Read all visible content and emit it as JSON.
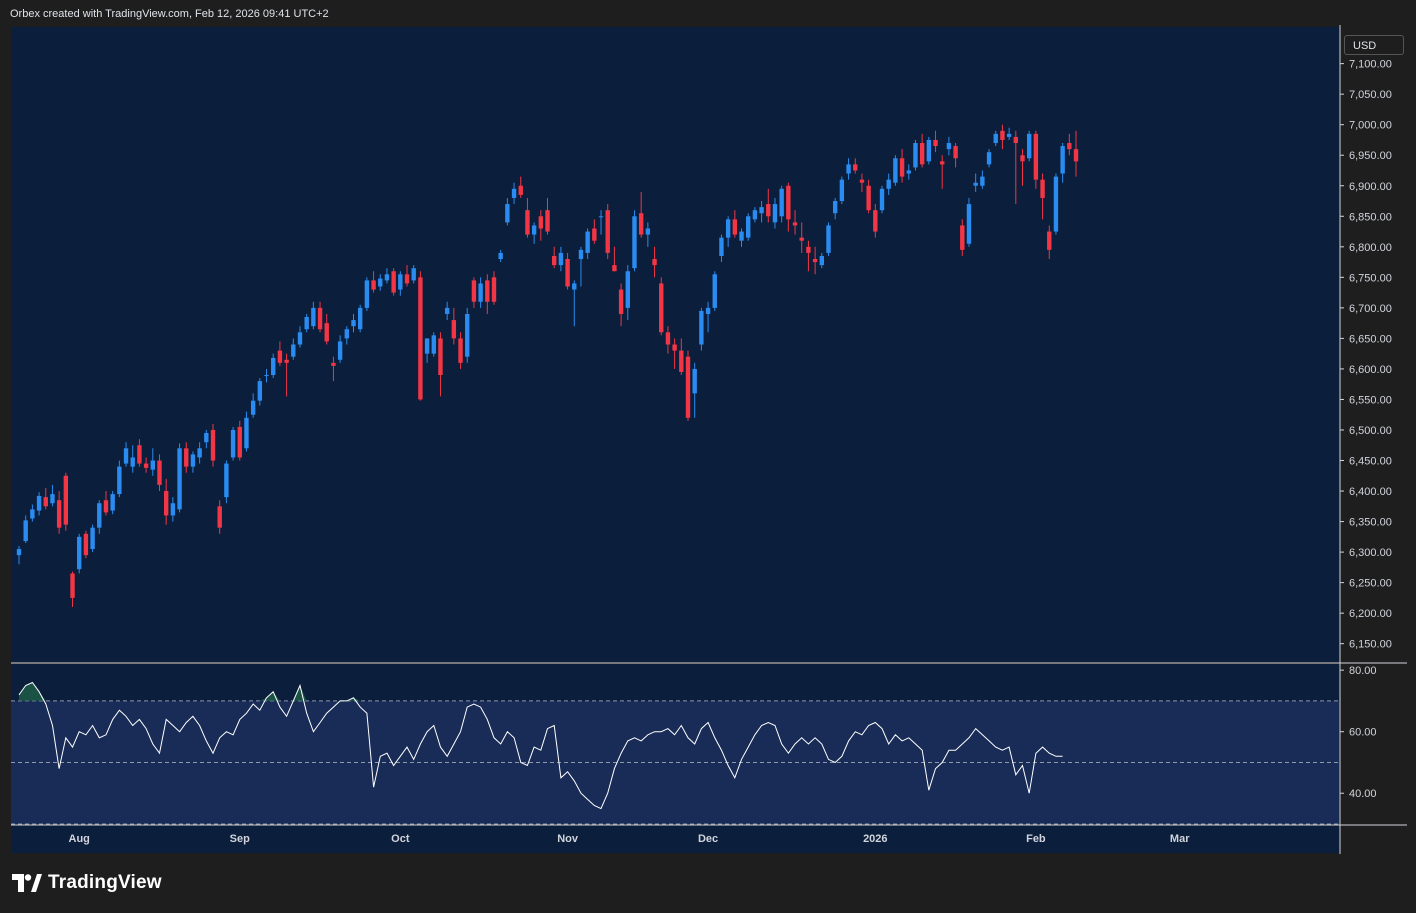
{
  "header": {
    "text": "Orbex created with TradingView.com, Feb 12, 2026 09:41 UTC+2"
  },
  "price_scale": {
    "currency": "USD"
  },
  "branding": {
    "logo_text": "TradingView"
  },
  "colors": {
    "up": "#2a8cf0",
    "down": "#f23645",
    "pane_bg": "#0b1e3b",
    "rsi_band": "#182c57",
    "rsi_line": "#ffffff"
  },
  "chart_data": [
    {
      "type": "candlestick",
      "ylim": [
        6120,
        7160
      ],
      "yticks": [
        "7,100.00",
        "7,050.00",
        "7,000.00",
        "6,950.00",
        "6,900.00",
        "6,850.00",
        "6,800.00",
        "6,750.00",
        "6,700.00",
        "6,650.00",
        "6,600.00",
        "6,550.00",
        "6,500.00",
        "6,450.00",
        "6,400.00",
        "6,350.00",
        "6,300.00",
        "6,250.00",
        "6,200.00",
        "6,150.00"
      ],
      "x_labels": [
        "Aug",
        "Sep",
        "Oct",
        "Nov",
        "Dec",
        "2026",
        "Feb",
        "Mar"
      ],
      "candles": [
        {
          "o": 6295,
          "h": 6310,
          "c": 6305,
          "l": 6280
        },
        {
          "o": 6318,
          "h": 6360,
          "c": 6352,
          "l": 6315
        },
        {
          "o": 6355,
          "h": 6378,
          "c": 6370,
          "l": 6350
        },
        {
          "o": 6368,
          "h": 6398,
          "c": 6392,
          "l": 6360
        },
        {
          "o": 6390,
          "h": 6405,
          "c": 6375,
          "l": 6370
        },
        {
          "o": 6380,
          "h": 6410,
          "c": 6395,
          "l": 6375
        },
        {
          "o": 6385,
          "h": 6400,
          "c": 6340,
          "l": 6330
        },
        {
          "o": 6425,
          "h": 6430,
          "c": 6345,
          "l": 6335
        },
        {
          "o": 6265,
          "h": 6268,
          "c": 6225,
          "l": 6210
        },
        {
          "o": 6272,
          "h": 6330,
          "c": 6325,
          "l": 6265
        },
        {
          "o": 6330,
          "h": 6335,
          "c": 6295,
          "l": 6290
        },
        {
          "o": 6305,
          "h": 6345,
          "c": 6340,
          "l": 6300
        },
        {
          "o": 6340,
          "h": 6385,
          "c": 6380,
          "l": 6330
        },
        {
          "o": 6385,
          "h": 6400,
          "c": 6365,
          "l": 6360
        },
        {
          "o": 6368,
          "h": 6400,
          "c": 6395,
          "l": 6362
        },
        {
          "o": 6395,
          "h": 6450,
          "c": 6440,
          "l": 6390
        },
        {
          "o": 6445,
          "h": 6480,
          "c": 6470,
          "l": 6440
        },
        {
          "o": 6440,
          "h": 6475,
          "c": 6455,
          "l": 6430
        },
        {
          "o": 6475,
          "h": 6485,
          "c": 6445,
          "l": 6440
        },
        {
          "o": 6445,
          "h": 6455,
          "c": 6438,
          "l": 6430
        },
        {
          "o": 6435,
          "h": 6470,
          "c": 6450,
          "l": 6425
        },
        {
          "o": 6450,
          "h": 6460,
          "c": 6410,
          "l": 6400
        },
        {
          "o": 6400,
          "h": 6420,
          "c": 6360,
          "l": 6345
        },
        {
          "o": 6360,
          "h": 6390,
          "c": 6380,
          "l": 6350
        },
        {
          "o": 6370,
          "h": 6478,
          "c": 6470,
          "l": 6365
        },
        {
          "o": 6470,
          "h": 6480,
          "c": 6440,
          "l": 6430
        },
        {
          "o": 6440,
          "h": 6465,
          "c": 6460,
          "l": 6430
        },
        {
          "o": 6455,
          "h": 6480,
          "c": 6470,
          "l": 6445
        },
        {
          "o": 6480,
          "h": 6500,
          "c": 6495,
          "l": 6470
        },
        {
          "o": 6500,
          "h": 6510,
          "c": 6450,
          "l": 6440
        },
        {
          "o": 6375,
          "h": 6385,
          "c": 6340,
          "l": 6330
        },
        {
          "o": 6390,
          "h": 6450,
          "c": 6445,
          "l": 6380
        },
        {
          "o": 6455,
          "h": 6505,
          "c": 6500,
          "l": 6450
        },
        {
          "o": 6505,
          "h": 6515,
          "c": 6455,
          "l": 6450
        },
        {
          "o": 6470,
          "h": 6530,
          "c": 6520,
          "l": 6465
        },
        {
          "o": 6525,
          "h": 6560,
          "c": 6548,
          "l": 6520
        },
        {
          "o": 6548,
          "h": 6585,
          "c": 6580,
          "l": 6540
        },
        {
          "o": 6590,
          "h": 6600,
          "c": 6590,
          "l": 6578
        },
        {
          "o": 6590,
          "h": 6625,
          "c": 6618,
          "l": 6585
        },
        {
          "o": 6630,
          "h": 6645,
          "c": 6610,
          "l": 6605
        },
        {
          "o": 6615,
          "h": 6625,
          "c": 6610,
          "l": 6555
        },
        {
          "o": 6620,
          "h": 6650,
          "c": 6640,
          "l": 6615
        },
        {
          "o": 6640,
          "h": 6670,
          "c": 6660,
          "l": 6635
        },
        {
          "o": 6665,
          "h": 6690,
          "c": 6685,
          "l": 6660
        },
        {
          "o": 6670,
          "h": 6710,
          "c": 6700,
          "l": 6665
        },
        {
          "o": 6700,
          "h": 6710,
          "c": 6665,
          "l": 6660
        },
        {
          "o": 6675,
          "h": 6690,
          "c": 6645,
          "l": 6640
        },
        {
          "o": 6610,
          "h": 6620,
          "c": 6605,
          "l": 6580
        },
        {
          "o": 6615,
          "h": 6655,
          "c": 6645,
          "l": 6610
        },
        {
          "o": 6650,
          "h": 6670,
          "c": 6665,
          "l": 6640
        },
        {
          "o": 6670,
          "h": 6690,
          "c": 6680,
          "l": 6660
        },
        {
          "o": 6665,
          "h": 6705,
          "c": 6700,
          "l": 6660
        },
        {
          "o": 6700,
          "h": 6750,
          "c": 6745,
          "l": 6695
        },
        {
          "o": 6745,
          "h": 6760,
          "c": 6730,
          "l": 6725
        },
        {
          "o": 6735,
          "h": 6755,
          "c": 6748,
          "l": 6728
        },
        {
          "o": 6745,
          "h": 6765,
          "c": 6755,
          "l": 6740
        },
        {
          "o": 6760,
          "h": 6765,
          "c": 6725,
          "l": 6720
        },
        {
          "o": 6730,
          "h": 6760,
          "c": 6755,
          "l": 6720
        },
        {
          "o": 6755,
          "h": 6770,
          "c": 6740,
          "l": 6735
        },
        {
          "o": 6745,
          "h": 6770,
          "c": 6765,
          "l": 6740
        },
        {
          "o": 6750,
          "h": 6760,
          "c": 6550,
          "l": 6548
        },
        {
          "o": 6625,
          "h": 6650,
          "c": 6650,
          "l": 6610
        },
        {
          "o": 6625,
          "h": 6660,
          "c": 6655,
          "l": 6620
        },
        {
          "o": 6650,
          "h": 6660,
          "c": 6590,
          "l": 6555
        },
        {
          "o": 6690,
          "h": 6710,
          "c": 6700,
          "l": 6680
        },
        {
          "o": 6680,
          "h": 6700,
          "c": 6650,
          "l": 6640
        },
        {
          "o": 6650,
          "h": 6660,
          "c": 6610,
          "l": 6600
        },
        {
          "o": 6620,
          "h": 6700,
          "c": 6690,
          "l": 6610
        },
        {
          "o": 6745,
          "h": 6750,
          "c": 6710,
          "l": 6700
        },
        {
          "o": 6710,
          "h": 6750,
          "c": 6740,
          "l": 6700
        },
        {
          "o": 6745,
          "h": 6755,
          "c": 6710,
          "l": 6690
        },
        {
          "o": 6750,
          "h": 6760,
          "c": 6710,
          "l": 6705
        },
        {
          "o": 6780,
          "h": 6795,
          "c": 6790,
          "l": 6775
        },
        {
          "o": 6840,
          "h": 6880,
          "c": 6870,
          "l": 6835
        },
        {
          "o": 6880,
          "h": 6905,
          "c": 6895,
          "l": 6870
        },
        {
          "o": 6900,
          "h": 6915,
          "c": 6885,
          "l": 6880
        },
        {
          "o": 6860,
          "h": 6880,
          "c": 6820,
          "l": 6815
        },
        {
          "o": 6820,
          "h": 6840,
          "c": 6835,
          "l": 6805
        },
        {
          "o": 6850,
          "h": 6860,
          "c": 6830,
          "l": 6810
        },
        {
          "o": 6860,
          "h": 6880,
          "c": 6825,
          "l": 6820
        },
        {
          "o": 6785,
          "h": 6800,
          "c": 6770,
          "l": 6765
        },
        {
          "o": 6770,
          "h": 6800,
          "c": 6790,
          "l": 6760
        },
        {
          "o": 6780,
          "h": 6790,
          "c": 6735,
          "l": 6730
        },
        {
          "o": 6730,
          "h": 6745,
          "c": 6740,
          "l": 6670
        },
        {
          "o": 6780,
          "h": 6800,
          "c": 6795,
          "l": 6735
        },
        {
          "o": 6790,
          "h": 6830,
          "c": 6825,
          "l": 6780
        },
        {
          "o": 6830,
          "h": 6845,
          "c": 6810,
          "l": 6805
        },
        {
          "o": 6850,
          "h": 6860,
          "c": 6850,
          "l": 6820
        },
        {
          "o": 6860,
          "h": 6870,
          "c": 6790,
          "l": 6780
        },
        {
          "o": 6770,
          "h": 6800,
          "c": 6760,
          "l": 6760
        },
        {
          "o": 6730,
          "h": 6740,
          "c": 6690,
          "l": 6670
        },
        {
          "o": 6700,
          "h": 6770,
          "c": 6760,
          "l": 6680
        },
        {
          "o": 6765,
          "h": 6860,
          "c": 6850,
          "l": 6760
        },
        {
          "o": 6855,
          "h": 6890,
          "c": 6820,
          "l": 6815
        },
        {
          "o": 6820,
          "h": 6840,
          "c": 6830,
          "l": 6800
        },
        {
          "o": 6780,
          "h": 6800,
          "c": 6770,
          "l": 6750
        },
        {
          "o": 6740,
          "h": 6750,
          "c": 6660,
          "l": 6655
        },
        {
          "o": 6660,
          "h": 6670,
          "c": 6640,
          "l": 6625
        },
        {
          "o": 6640,
          "h": 6650,
          "c": 6630,
          "l": 6600
        },
        {
          "o": 6630,
          "h": 6650,
          "c": 6595,
          "l": 6590
        },
        {
          "o": 6620,
          "h": 6630,
          "c": 6520,
          "l": 6515
        },
        {
          "o": 6560,
          "h": 6610,
          "c": 6600,
          "l": 6520
        },
        {
          "o": 6640,
          "h": 6700,
          "c": 6695,
          "l": 6630
        },
        {
          "o": 6690,
          "h": 6710,
          "c": 6700,
          "l": 6660
        },
        {
          "o": 6700,
          "h": 6760,
          "c": 6755,
          "l": 6695
        },
        {
          "o": 6785,
          "h": 6820,
          "c": 6815,
          "l": 6775
        },
        {
          "o": 6815,
          "h": 6850,
          "c": 6845,
          "l": 6800
        },
        {
          "o": 6845,
          "h": 6860,
          "c": 6820,
          "l": 6815
        },
        {
          "o": 6810,
          "h": 6830,
          "c": 6825,
          "l": 6800
        },
        {
          "o": 6815,
          "h": 6855,
          "c": 6850,
          "l": 6810
        },
        {
          "o": 6845,
          "h": 6865,
          "c": 6860,
          "l": 6840
        },
        {
          "o": 6855,
          "h": 6875,
          "c": 6865,
          "l": 6840
        },
        {
          "o": 6870,
          "h": 6895,
          "c": 6850,
          "l": 6840
        },
        {
          "o": 6840,
          "h": 6880,
          "c": 6870,
          "l": 6830
        },
        {
          "o": 6850,
          "h": 6900,
          "c": 6895,
          "l": 6840
        },
        {
          "o": 6900,
          "h": 6905,
          "c": 6845,
          "l": 6825
        },
        {
          "o": 6840,
          "h": 6860,
          "c": 6835,
          "l": 6820
        },
        {
          "o": 6815,
          "h": 6840,
          "c": 6810,
          "l": 6790
        },
        {
          "o": 6800,
          "h": 6810,
          "c": 6790,
          "l": 6760
        },
        {
          "o": 6780,
          "h": 6800,
          "c": 6775,
          "l": 6755
        },
        {
          "o": 6770,
          "h": 6790,
          "c": 6785,
          "l": 6765
        },
        {
          "o": 6790,
          "h": 6840,
          "c": 6835,
          "l": 6785
        },
        {
          "o": 6855,
          "h": 6880,
          "c": 6875,
          "l": 6845
        },
        {
          "o": 6875,
          "h": 6915,
          "c": 6910,
          "l": 6870
        },
        {
          "o": 6920,
          "h": 6945,
          "c": 6935,
          "l": 6910
        },
        {
          "o": 6935,
          "h": 6945,
          "c": 6925,
          "l": 6920
        },
        {
          "o": 6910,
          "h": 6920,
          "c": 6905,
          "l": 6890
        },
        {
          "o": 6900,
          "h": 6910,
          "c": 6860,
          "l": 6855
        },
        {
          "o": 6860,
          "h": 6870,
          "c": 6825,
          "l": 6815
        },
        {
          "o": 6860,
          "h": 6900,
          "c": 6895,
          "l": 6855
        },
        {
          "o": 6895,
          "h": 6920,
          "c": 6910,
          "l": 6885
        },
        {
          "o": 6905,
          "h": 6950,
          "c": 6945,
          "l": 6900
        },
        {
          "o": 6945,
          "h": 6960,
          "c": 6915,
          "l": 6905
        },
        {
          "o": 6920,
          "h": 6935,
          "c": 6925,
          "l": 6910
        },
        {
          "o": 6930,
          "h": 6975,
          "c": 6970,
          "l": 6925
        },
        {
          "o": 6970,
          "h": 6985,
          "c": 6935,
          "l": 6930
        },
        {
          "o": 6940,
          "h": 6980,
          "c": 6975,
          "l": 6935
        },
        {
          "o": 6975,
          "h": 6990,
          "c": 6965,
          "l": 6955
        },
        {
          "o": 6940,
          "h": 6950,
          "c": 6935,
          "l": 6895
        },
        {
          "o": 6960,
          "h": 6980,
          "c": 6970,
          "l": 6950
        },
        {
          "o": 6965,
          "h": 6970,
          "c": 6945,
          "l": 6930
        },
        {
          "o": 6835,
          "h": 6845,
          "c": 6795,
          "l": 6785
        },
        {
          "o": 6805,
          "h": 6880,
          "c": 6870,
          "l": 6800
        },
        {
          "o": 6900,
          "h": 6920,
          "c": 6905,
          "l": 6890
        },
        {
          "o": 6900,
          "h": 6925,
          "c": 6915,
          "l": 6895
        },
        {
          "o": 6935,
          "h": 6960,
          "c": 6955,
          "l": 6930
        },
        {
          "o": 6970,
          "h": 6990,
          "c": 6985,
          "l": 6965
        },
        {
          "o": 6990,
          "h": 7000,
          "c": 6975,
          "l": 6960
        },
        {
          "o": 6980,
          "h": 6995,
          "c": 6985,
          "l": 6975
        },
        {
          "o": 6980,
          "h": 6990,
          "c": 6970,
          "l": 6870
        },
        {
          "o": 6950,
          "h": 6960,
          "c": 6940,
          "l": 6900
        },
        {
          "o": 6945,
          "h": 6990,
          "c": 6985,
          "l": 6940
        },
        {
          "o": 6985,
          "h": 6990,
          "c": 6910,
          "l": 6895
        },
        {
          "o": 6910,
          "h": 6920,
          "c": 6880,
          "l": 6845
        },
        {
          "o": 6825,
          "h": 6835,
          "c": 6795,
          "l": 6780
        },
        {
          "o": 6825,
          "h": 6920,
          "c": 6915,
          "l": 6820
        },
        {
          "o": 6920,
          "h": 6970,
          "c": 6965,
          "l": 6905
        },
        {
          "o": 6970,
          "h": 6985,
          "c": 6960,
          "l": 6950
        },
        {
          "o": 6960,
          "h": 6990,
          "c": 6940,
          "l": 6915
        }
      ]
    },
    {
      "type": "line",
      "ylim": [
        30,
        82
      ],
      "yticks": [
        "80.00",
        "60.00",
        "40.00"
      ],
      "bands": [
        70,
        50,
        30
      ],
      "values": [
        72,
        75,
        76,
        73,
        69,
        62,
        48,
        58,
        55,
        60,
        59,
        62,
        58,
        59,
        64,
        67,
        65,
        62,
        64,
        61,
        56,
        53,
        64,
        62,
        60,
        63,
        65,
        62,
        57,
        53,
        58,
        60,
        59,
        64,
        66,
        69,
        67,
        71,
        73,
        68,
        65,
        70,
        75,
        66,
        60,
        63,
        66,
        68,
        70,
        70,
        71,
        68,
        66,
        42,
        52,
        53,
        49,
        52,
        55,
        51,
        56,
        60,
        62,
        55,
        52,
        56,
        60,
        68,
        69,
        68,
        64,
        58,
        56,
        60,
        58,
        50,
        49,
        55,
        54,
        61,
        62,
        45,
        47,
        44,
        40,
        38,
        36,
        35,
        40,
        48,
        53,
        57,
        58,
        57,
        59,
        60,
        60,
        61,
        59,
        62,
        58,
        56,
        61,
        63,
        58,
        54,
        49,
        45,
        51,
        55,
        59,
        62,
        63,
        62,
        56,
        53,
        56,
        58,
        56,
        58,
        56,
        51,
        50,
        52,
        57,
        60,
        59,
        62,
        63,
        61,
        56,
        59,
        57,
        58,
        56,
        54,
        41,
        48,
        50,
        54,
        54,
        56,
        58,
        61,
        59,
        57,
        55,
        54,
        55,
        46,
        49,
        40,
        53,
        55,
        53,
        52,
        52
      ]
    }
  ]
}
